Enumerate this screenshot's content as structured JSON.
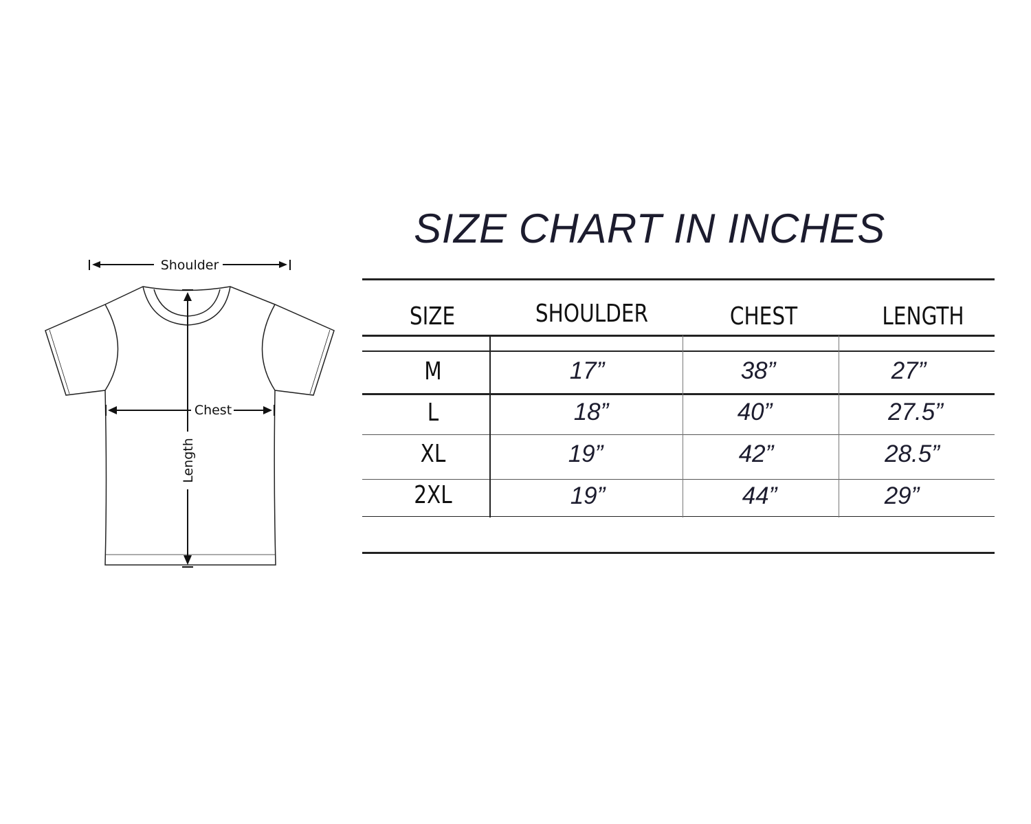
{
  "title": "SIZE CHART IN INCHES",
  "diagram": {
    "shoulder_label": "Shoulder",
    "chest_label": "Chest",
    "length_label": "Length"
  },
  "chart_data": {
    "type": "table",
    "title": "SIZE CHART IN INCHES",
    "columns": [
      "SIZE",
      "SHOULDER",
      "CHEST",
      "LENGTH"
    ],
    "rows": [
      [
        "M",
        "17”",
        "38”",
        "27”"
      ],
      [
        "L",
        "18”",
        "40”",
        "27.5”"
      ],
      [
        "XL",
        "19”",
        "42”",
        "28.5”"
      ],
      [
        "2XL",
        "19”",
        "44”",
        "29”"
      ]
    ]
  },
  "colors": {
    "title": "#1c1c2e",
    "text": "#111111",
    "lines": "#222222"
  }
}
